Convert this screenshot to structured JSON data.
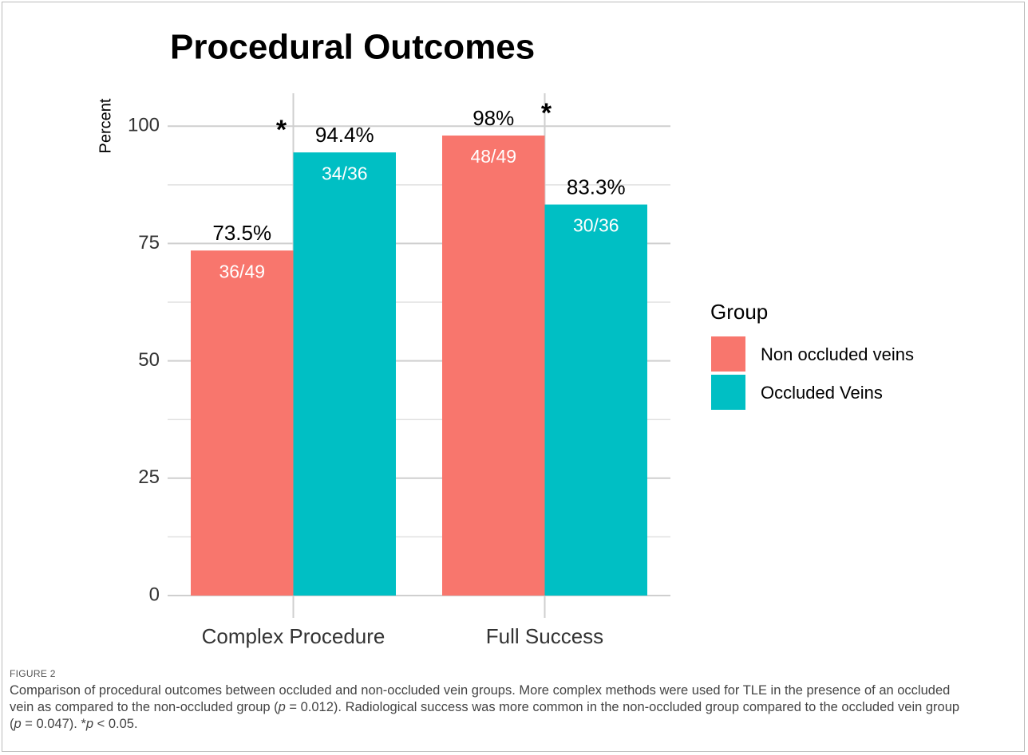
{
  "chart_data": {
    "type": "bar",
    "title": "Procedural Outcomes",
    "y_label": "Percent",
    "categories": [
      "Complex Procedure",
      "Full Success"
    ],
    "series": [
      {
        "name": "Non occluded veins",
        "color": "#f8766d",
        "values": [
          73.5,
          98
        ],
        "value_labels": [
          "73.5%",
          "98%"
        ],
        "count_labels": [
          "36/49",
          "48/49"
        ]
      },
      {
        "name": "Occluded Veins",
        "color": "#00bfc4",
        "values": [
          94.4,
          83.3
        ],
        "value_labels": [
          "94.4%",
          "83.3%"
        ],
        "count_labels": [
          "34/36",
          "30/36"
        ]
      }
    ],
    "annotations": [
      {
        "text": "*",
        "category": 0
      },
      {
        "text": "*",
        "category": 1
      }
    ],
    "ylim": [
      0,
      107
    ],
    "yticks": [
      0,
      25,
      50,
      75,
      100
    ],
    "minor_yticks": [
      12.5,
      37.5,
      62.5,
      87.5
    ],
    "grid": true,
    "legend_title": "Group",
    "legend": "right"
  },
  "figure_label": "FIGURE 2",
  "caption": [
    "Comparison of procedural outcomes between occluded and non-occluded vein groups. More complex methods were used for TLE in the presence of an occluded vein as compared to the non-occluded group (",
    "p",
    " = 0.012). Radiological success was more common in the non-occluded group compared to the occluded vein group (",
    "p",
    " = 0.047). *",
    "p",
    " < 0.05."
  ]
}
